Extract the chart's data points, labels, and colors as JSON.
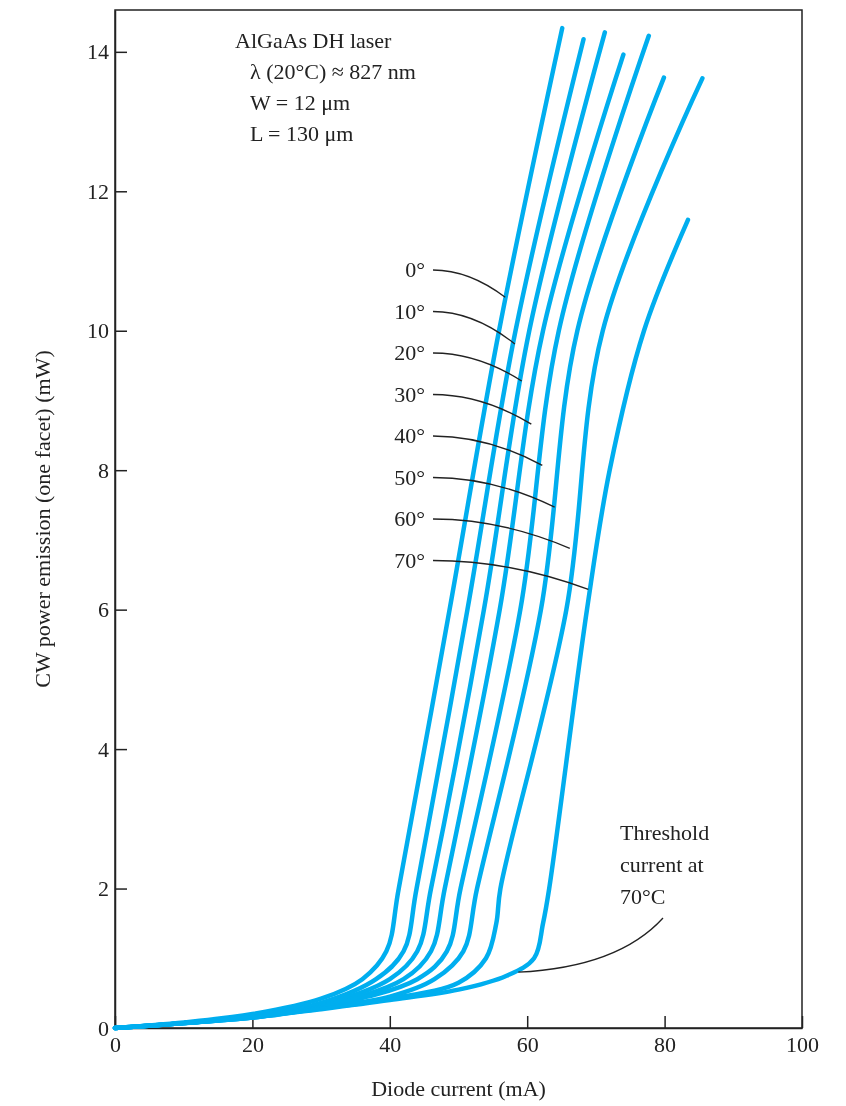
{
  "chart_data": {
    "type": "line",
    "xlabel": "Diode current (mA)",
    "ylabel": "CW power emission (one facet) (mW)",
    "xlim": [
      0,
      100
    ],
    "xticks": [
      0,
      20,
      40,
      60,
      80,
      100
    ],
    "ylim": [
      0,
      14.6
    ],
    "yticks": [
      0,
      2,
      4,
      6,
      8,
      10,
      12,
      14
    ],
    "grid": false,
    "marker": "none",
    "line_style": "solid",
    "annotations": [
      "AlGaAs DH laser",
      "λ (20°C) ≈ 827 nm",
      "W = 12 μm",
      "L = 130 μm",
      {
        "text": "0°",
        "x": 56.8,
        "y": 10.48
      },
      {
        "text": "10°",
        "x": 58.2,
        "y": 9.81
      },
      {
        "text": "20°",
        "x": 59.2,
        "y": 9.28
      },
      {
        "text": "30°",
        "x": 60.6,
        "y": 8.66
      },
      {
        "text": "40°",
        "x": 62.2,
        "y": 8.07
      },
      {
        "text": "50°",
        "x": 64,
        "y": 7.47
      },
      {
        "text": "60°",
        "x": 66.2,
        "y": 6.88
      },
      {
        "text": "70°",
        "x": 68.9,
        "y": 6.29
      },
      {
        "text": "Threshold current at 70°C",
        "x": 58.7,
        "y": 0.8
      }
    ],
    "series": [
      {
        "color": "#00aeef",
        "x": [
          0,
          10,
          20,
          30,
          36,
          39.5,
          41.3,
          48.7,
          55.9,
          65.1
        ],
        "values": [
          0,
          0.08,
          0.2,
          0.42,
          0.7,
          1.1,
          2,
          6,
          10,
          14.34
        ]
      },
      {
        "color": "#00aeef",
        "x": [
          0,
          10,
          20,
          30,
          38,
          42,
          43.9,
          51.3,
          58.3,
          68.2
        ],
        "values": [
          0,
          0.07,
          0.18,
          0.36,
          0.7,
          1.1,
          2,
          6,
          10,
          14.18
        ]
      },
      {
        "color": "#00aeef",
        "x": [
          0,
          10,
          20,
          30,
          40,
          44,
          46,
          53.7,
          60.3,
          71.3
        ],
        "values": [
          0,
          0.07,
          0.17,
          0.33,
          0.7,
          1.1,
          2,
          6,
          10,
          14.28
        ]
      },
      {
        "color": "#00aeef",
        "x": [
          0,
          10,
          20,
          30,
          42,
          46,
          48,
          56,
          62.3,
          74
        ],
        "values": [
          0,
          0.07,
          0.16,
          0.31,
          0.7,
          1.1,
          2,
          6,
          10,
          13.96
        ]
      },
      {
        "color": "#00aeef",
        "x": [
          0,
          10,
          20,
          30,
          44,
          48.3,
          50.3,
          59,
          64.6,
          77.7
        ],
        "values": [
          0,
          0.07,
          0.16,
          0.3,
          0.7,
          1.1,
          2,
          6,
          10,
          14.23
        ]
      },
      {
        "color": "#00aeef",
        "x": [
          0,
          10,
          20,
          30,
          40,
          46.5,
          50.7,
          52.7,
          62,
          67.3,
          79.9
        ],
        "values": [
          0,
          0.07,
          0.15,
          0.29,
          0.45,
          0.7,
          1.1,
          2,
          6,
          10,
          13.63
        ]
      },
      {
        "color": "#00aeef",
        "x": [
          0,
          10,
          20,
          30,
          40,
          50,
          54,
          55.5,
          56.1,
          65.7,
          71,
          85.5
        ],
        "values": [
          0,
          0.07,
          0.15,
          0.28,
          0.42,
          0.65,
          1,
          1.5,
          2,
          6,
          10,
          13.62
        ]
      },
      {
        "color": "#00aeef",
        "x": [
          0,
          10,
          20,
          30,
          40,
          50,
          57,
          61,
          62.3,
          63.2,
          68.7,
          72,
          77,
          83.4
        ],
        "values": [
          0,
          0.07,
          0.15,
          0.27,
          0.4,
          0.55,
          0.75,
          1,
          1.5,
          2,
          6,
          8,
          10,
          11.59
        ]
      }
    ]
  }
}
